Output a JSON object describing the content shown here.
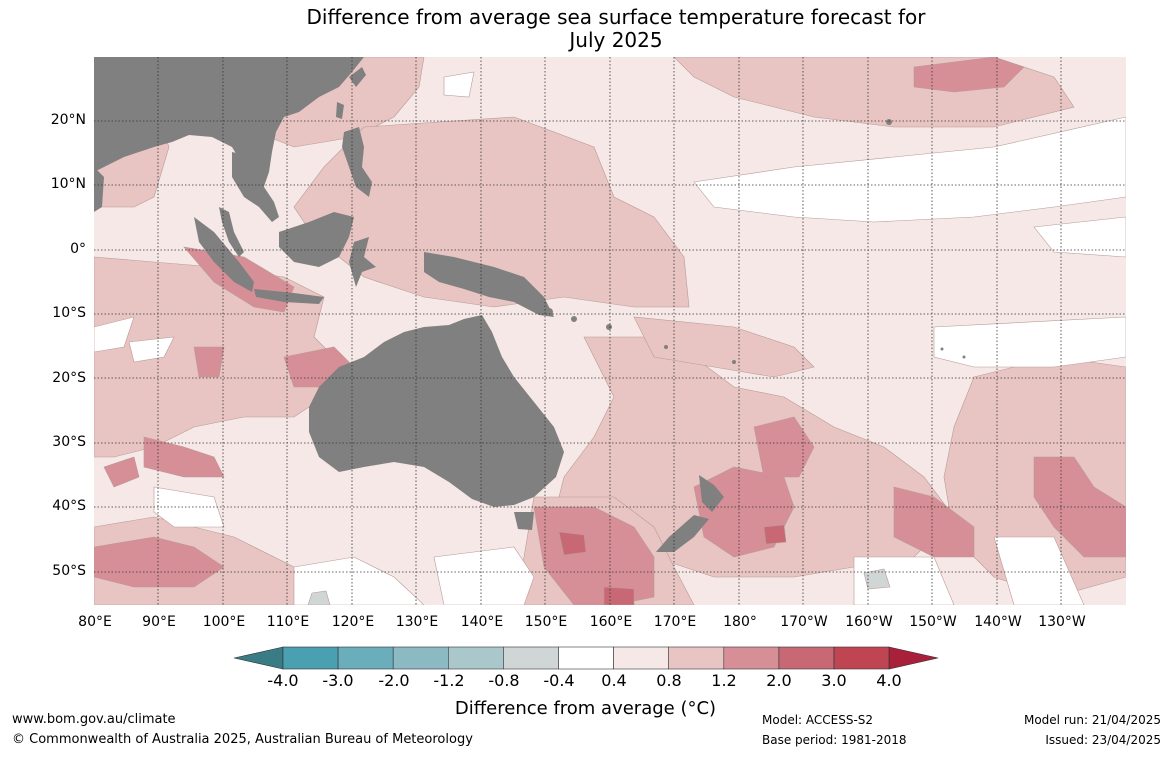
{
  "title": {
    "line1": "Difference from average sea surface temperature forecast for",
    "line2": "July 2025"
  },
  "map": {
    "land_color": "#808080",
    "grid_style": "dotted",
    "lat_labels": [
      "20°N",
      "10°N",
      "0°",
      "10°S",
      "20°S",
      "30°S",
      "40°S",
      "50°S"
    ],
    "lon_labels": [
      "80°E",
      "90°E",
      "100°E",
      "110°E",
      "120°E",
      "130°E",
      "140°E",
      "150°E",
      "160°E",
      "170°E",
      "180°",
      "170°W",
      "160°W",
      "150°W",
      "140°W",
      "130°W"
    ]
  },
  "colorbar": {
    "label": "Difference from average (°C)",
    "tick_labels": [
      "-4.0",
      "-3.0",
      "-2.0",
      "-1.2",
      "-0.8",
      "-0.4",
      "0.4",
      "0.8",
      "1.2",
      "2.0",
      "3.0",
      "4.0"
    ],
    "colors": [
      "#4a9fb0",
      "#6aadbb",
      "#8bbac3",
      "#aac8cc",
      "#d0d6d6",
      "#ffffff",
      "#f5e8e6",
      "#e8c5c2",
      "#d68f96",
      "#c76874",
      "#bf4553"
    ],
    "extend_low_color": "#3a7c86",
    "extend_high_color": "#a8203a"
  },
  "footer": {
    "website": "www.bom.gov.au/climate",
    "copyright": "© Commonwealth of Australia 2025, Australian Bureau of Meteorology",
    "model": "Model: ACCESS-S2",
    "base_period": "Base period: 1981-2018",
    "model_run": "Model run: 21/04/2025",
    "issued": "Issued: 23/04/2025"
  }
}
